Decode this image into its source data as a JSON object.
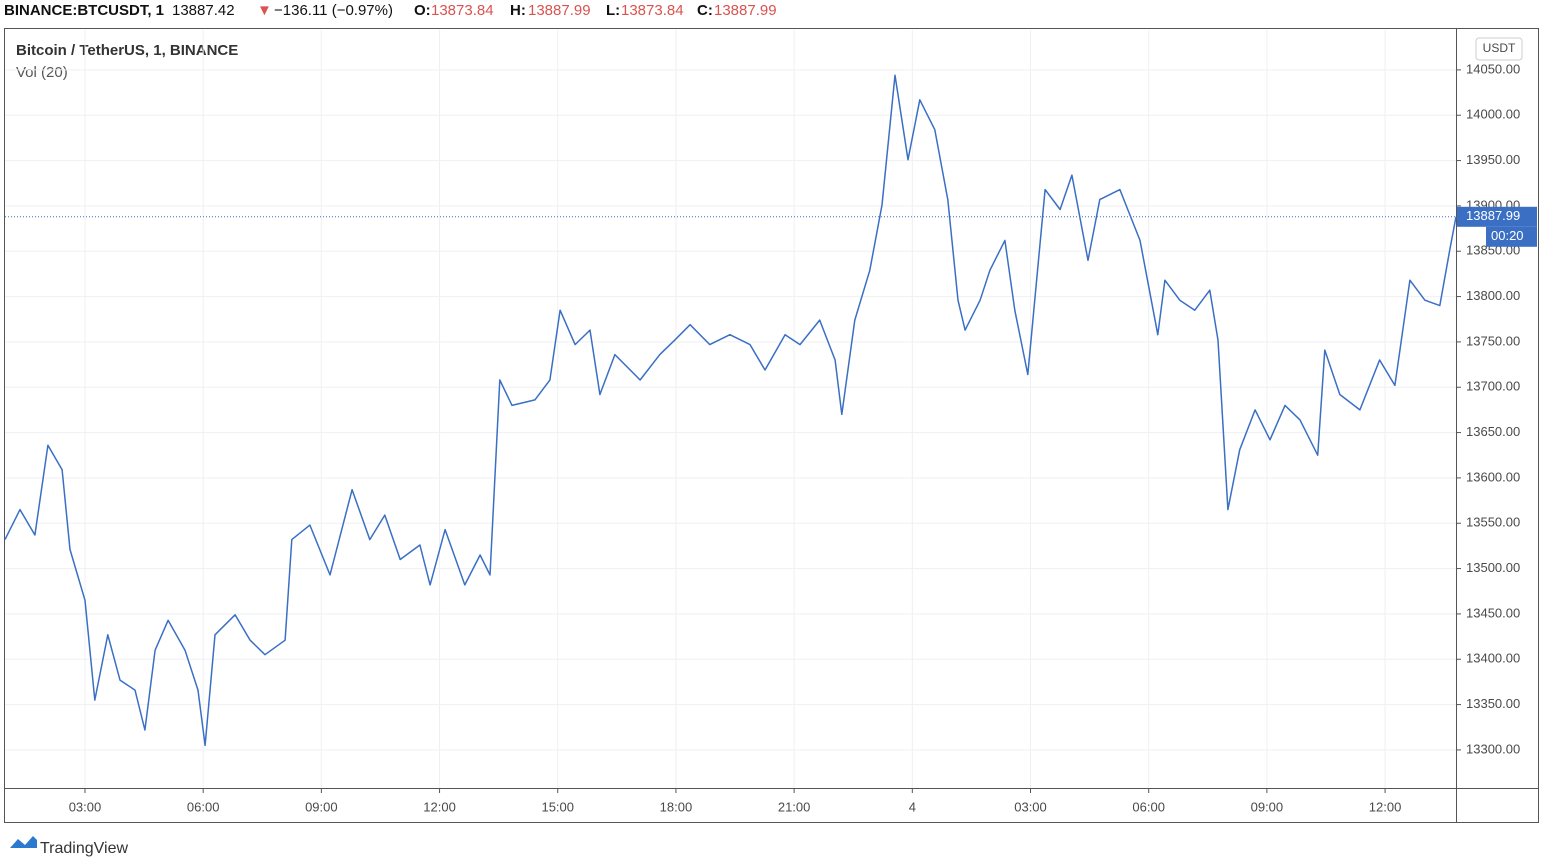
{
  "header": {
    "symbol": "BINANCE:BTCUSDT, 1",
    "last": "13887.42",
    "arrow": "▼",
    "change": "−136.11 (−0.97%)",
    "o_label": "O:",
    "o": "13873.84",
    "h_label": "H:",
    "h": "13887.99",
    "l_label": "L:",
    "l": "13873.84",
    "c_label": "C:",
    "c": "13887.99"
  },
  "chart_data": {
    "type": "line",
    "title": "Bitcoin / TetherUS, 1, BINANCE",
    "subtitle": "Vol (20)",
    "y_unit": "USDT",
    "countdown": "00:20",
    "brand": "TradingView",
    "grid": true,
    "last_price": {
      "value": 13887.99,
      "label": "13887.99"
    },
    "x": [
      0.97,
      1.35,
      1.73,
      2.06,
      2.42,
      2.62,
      3.0,
      3.25,
      3.58,
      3.89,
      4.27,
      4.52,
      4.78,
      5.11,
      5.54,
      5.87,
      6.05,
      6.3,
      6.81,
      7.19,
      7.57,
      8.08,
      8.25,
      8.71,
      9.22,
      9.78,
      10.23,
      10.61,
      11.0,
      11.5,
      11.76,
      12.14,
      12.64,
      13.03,
      13.28,
      13.53,
      13.84,
      14.42,
      14.8,
      15.06,
      15.44,
      15.82,
      16.07,
      16.45,
      17.09,
      17.59,
      17.97,
      18.36,
      18.86,
      19.37,
      19.88,
      20.26,
      20.77,
      21.15,
      21.65,
      22.04,
      22.21,
      22.54,
      22.92,
      23.23,
      23.56,
      23.89,
      24.19,
      24.57,
      24.9,
      25.16,
      25.34,
      25.72,
      25.97,
      26.35,
      26.6,
      26.93,
      27.37,
      27.75,
      28.05,
      28.46,
      28.76,
      29.27,
      29.78,
      30.23,
      30.41,
      30.79,
      31.17,
      31.55,
      31.76,
      32.01,
      32.31,
      32.7,
      33.08,
      33.46,
      33.84,
      34.29,
      34.47,
      34.85,
      35.36,
      35.86,
      36.25,
      36.63,
      37.01,
      37.39,
      37.64,
      37.8
    ],
    "series": [
      {
        "name": "BTCUSDT",
        "color": "#3a6fc4",
        "values": [
          13532,
          13565,
          13537,
          13636,
          13609,
          13521,
          13465,
          13355,
          13427,
          13377,
          13366,
          13322,
          13410,
          13443,
          13410,
          13366,
          13305,
          13427,
          13449,
          13421,
          13405,
          13421,
          13532,
          13548,
          13493,
          13587,
          13532,
          13559,
          13510,
          13526,
          13482,
          13543,
          13482,
          13515,
          13493,
          13708,
          13680,
          13686,
          13708,
          13785,
          13747,
          13763,
          13692,
          13736,
          13708,
          13736,
          13752,
          13769,
          13747,
          13758,
          13747,
          13719,
          13758,
          13747,
          13774,
          13730,
          13670,
          13774,
          13829,
          13901,
          14044,
          13951,
          14017,
          13984,
          13907,
          13796,
          13763,
          13796,
          13829,
          13862,
          13785,
          13714,
          13918,
          13896,
          13934,
          13840,
          13907,
          13918,
          13862,
          13758,
          13818,
          13796,
          13785,
          13807,
          13752,
          13565,
          13631,
          13675,
          13642,
          13680,
          13664,
          13625,
          13741,
          13692,
          13675,
          13730,
          13702,
          13818,
          13796,
          13790,
          13851,
          13887.99
        ]
      }
    ],
    "xlim": [
      0.97,
      37.8
    ],
    "xticks": [
      {
        "value": 3,
        "label": "03:00"
      },
      {
        "value": 6,
        "label": "06:00"
      },
      {
        "value": 9,
        "label": "09:00"
      },
      {
        "value": 12,
        "label": "12:00"
      },
      {
        "value": 15,
        "label": "15:00"
      },
      {
        "value": 18,
        "label": "18:00"
      },
      {
        "value": 21,
        "label": "21:00"
      },
      {
        "value": 24,
        "label": "4"
      },
      {
        "value": 27,
        "label": "03:00"
      },
      {
        "value": 30,
        "label": "06:00"
      },
      {
        "value": 33,
        "label": "09:00"
      },
      {
        "value": 36,
        "label": "12:00"
      }
    ],
    "ylim": [
      13258,
      14094
    ],
    "yticks": [
      {
        "value": 13300,
        "label": "13300.00"
      },
      {
        "value": 13350,
        "label": "13350.00"
      },
      {
        "value": 13400,
        "label": "13400.00"
      },
      {
        "value": 13450,
        "label": "13450.00"
      },
      {
        "value": 13500,
        "label": "13500.00"
      },
      {
        "value": 13550,
        "label": "13550.00"
      },
      {
        "value": 13600,
        "label": "13600.00"
      },
      {
        "value": 13650,
        "label": "13650.00"
      },
      {
        "value": 13700,
        "label": "13700.00"
      },
      {
        "value": 13750,
        "label": "13750.00"
      },
      {
        "value": 13800,
        "label": "13800.00"
      },
      {
        "value": 13850,
        "label": "13850.00"
      },
      {
        "value": 13900,
        "label": "13900.00"
      },
      {
        "value": 13950,
        "label": "13950.00"
      },
      {
        "value": 14000,
        "label": "14000.00"
      },
      {
        "value": 14050,
        "label": "14050.00"
      }
    ]
  }
}
